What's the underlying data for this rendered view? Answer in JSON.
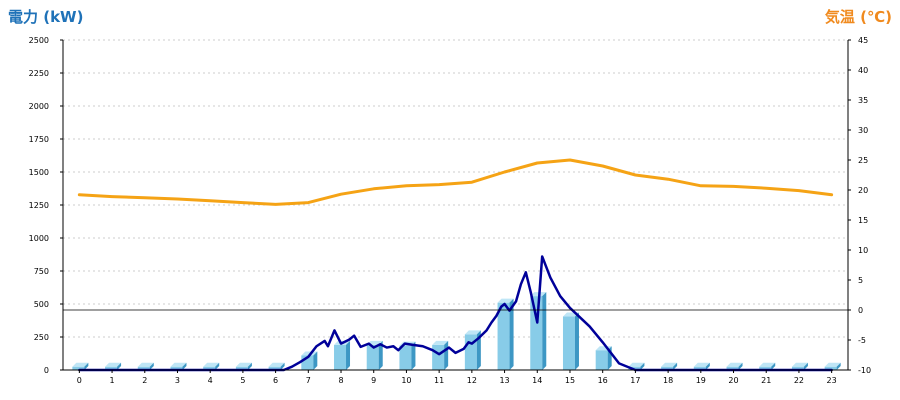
{
  "chart_data": {
    "type": "bar",
    "y_left": {
      "label": "電力 (kW)",
      "range": [
        0,
        2500
      ],
      "ticks": [
        0,
        250,
        500,
        750,
        1000,
        1250,
        1500,
        1750,
        2000,
        2250,
        2500
      ]
    },
    "y_right": {
      "label": "気温 (℃)",
      "range": [
        -10,
        45
      ],
      "ticks": [
        -10,
        -5,
        0,
        5,
        10,
        15,
        20,
        25,
        30,
        35,
        40,
        45
      ]
    },
    "categories": [
      "0",
      "1",
      "2",
      "3",
      "4",
      "5",
      "6",
      "7",
      "8",
      "9",
      "10",
      "11",
      "12",
      "13",
      "14",
      "15",
      "16",
      "17",
      "18",
      "19",
      "20",
      "21",
      "22",
      "23"
    ],
    "grid": true,
    "series": [
      {
        "type": "bar",
        "axis": "left",
        "color": "#88cce8",
        "values": [
          25,
          25,
          25,
          25,
          25,
          25,
          25,
          110,
          190,
          190,
          185,
          190,
          270,
          510,
          560,
          405,
          150,
          25,
          25,
          25,
          25,
          25,
          25,
          25
        ]
      },
      {
        "type": "line",
        "axis": "left",
        "color": "#000099",
        "x": [
          0,
          1,
          2,
          3,
          4,
          5,
          6,
          6.25,
          6.5,
          6.75,
          7,
          7.25,
          7.5,
          7.6,
          7.8,
          8,
          8.25,
          8.4,
          8.6,
          8.85,
          9,
          9.2,
          9.4,
          9.6,
          9.75,
          9.95,
          10.2,
          10.5,
          10.8,
          11,
          11.3,
          11.5,
          11.75,
          11.9,
          12,
          12.2,
          12.45,
          12.6,
          12.75,
          12.9,
          13,
          13.15,
          13.35,
          13.5,
          13.65,
          13.8,
          14,
          14.15,
          14.4,
          14.7,
          15,
          15.3,
          15.6,
          16,
          16.5,
          17,
          18,
          19,
          20,
          21,
          22,
          23
        ],
        "values": [
          0,
          0,
          0,
          0,
          0,
          0,
          0,
          0,
          25,
          60,
          100,
          180,
          220,
          180,
          300,
          200,
          230,
          260,
          175,
          200,
          170,
          195,
          170,
          180,
          150,
          200,
          190,
          180,
          150,
          120,
          170,
          130,
          160,
          210,
          200,
          240,
          300,
          360,
          410,
          480,
          500,
          450,
          520,
          650,
          740,
          590,
          360,
          860,
          700,
          560,
          470,
          400,
          330,
          210,
          50,
          0,
          0,
          0,
          0,
          0,
          0,
          0
        ]
      },
      {
        "type": "line",
        "axis": "right",
        "color": "#f5a315",
        "values": [
          19.2,
          18.9,
          18.7,
          18.5,
          18.2,
          17.9,
          17.6,
          17.9,
          19.3,
          20.2,
          20.7,
          20.9,
          21.3,
          23.0,
          24.5,
          25.0,
          24.0,
          22.5,
          21.8,
          20.7,
          20.6,
          20.3,
          19.9,
          19.2
        ]
      }
    ]
  }
}
